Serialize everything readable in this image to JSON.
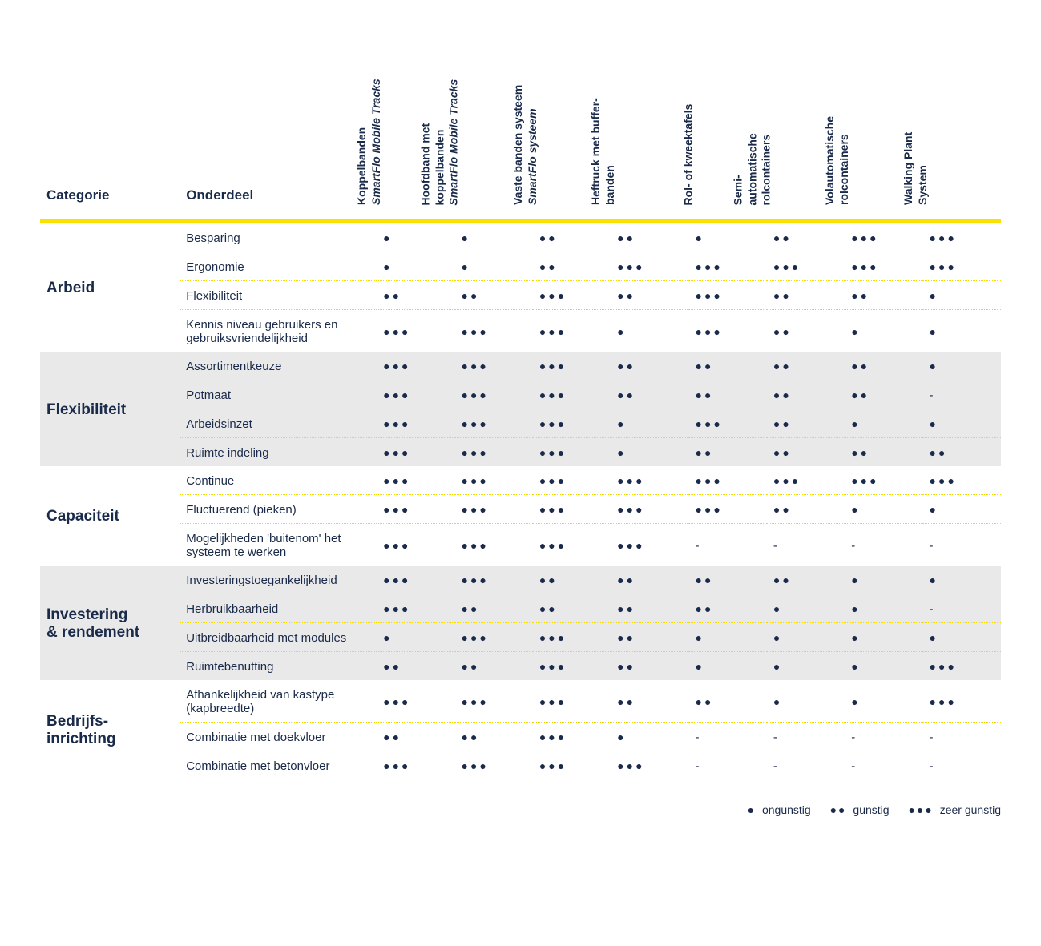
{
  "colors": {
    "text": "#1a2a4a",
    "yellow": "#f9e100",
    "alt_bg": "#e9e9e9",
    "background": "#ffffff"
  },
  "headers": {
    "categorie": "Categorie",
    "onderdeel": "Onderdeel"
  },
  "columns": [
    {
      "line1": "Koppelbanden",
      "line2": "SmartFlo Mobile Tracks"
    },
    {
      "line1": "Hoofdband met",
      "line1b": "koppelbanden",
      "line2": "SmartFlo Mobile Tracks"
    },
    {
      "line1": "Vaste banden systeem",
      "line2": "SmartFlo systeem"
    },
    {
      "line1": "Heftruck met buffer-",
      "line1b": "banden"
    },
    {
      "line1": "Rol- of kweektafels"
    },
    {
      "line1": "Semi-",
      "line1b": "automatische",
      "line1c": "rolcontainers"
    },
    {
      "line1": "Volautomatische",
      "line1b": "rolcontainers"
    },
    {
      "line1": "Walking Plant",
      "line1b": "System"
    }
  ],
  "sections": [
    {
      "category": "Arbeid",
      "alt": false,
      "rows": [
        {
          "label": "Besparing",
          "vals": [
            1,
            1,
            2,
            2,
            1,
            2,
            3,
            3
          ]
        },
        {
          "label": "Ergonomie",
          "vals": [
            1,
            1,
            2,
            3,
            3,
            3,
            3,
            3
          ]
        },
        {
          "label": "Flexibiliteit",
          "vals": [
            2,
            2,
            3,
            2,
            3,
            2,
            2,
            1
          ]
        },
        {
          "label": "Kennis niveau gebruikers en gebruiksvriendelijkheid",
          "vals": [
            3,
            3,
            3,
            1,
            3,
            2,
            1,
            1
          ]
        }
      ]
    },
    {
      "category": "Flexibiliteit",
      "alt": true,
      "rows": [
        {
          "label": "Assortimentkeuze",
          "vals": [
            3,
            3,
            3,
            2,
            2,
            2,
            2,
            1
          ]
        },
        {
          "label": "Potmaat",
          "vals": [
            3,
            3,
            3,
            2,
            2,
            2,
            2,
            "-"
          ]
        },
        {
          "label": "Arbeidsinzet",
          "vals": [
            3,
            3,
            3,
            1,
            3,
            2,
            1,
            1
          ]
        },
        {
          "label": "Ruimte indeling",
          "vals": [
            3,
            3,
            3,
            1,
            2,
            2,
            2,
            2
          ]
        }
      ]
    },
    {
      "category": "Capaciteit",
      "alt": false,
      "rows": [
        {
          "label": "Continue",
          "vals": [
            3,
            3,
            3,
            3,
            3,
            3,
            3,
            3
          ]
        },
        {
          "label": "Fluctuerend (pieken)",
          "vals": [
            3,
            3,
            3,
            3,
            3,
            2,
            1,
            1
          ]
        },
        {
          "label": "Mogelijkheden 'buitenom' het systeem te werken",
          "vals": [
            3,
            3,
            3,
            3,
            "-",
            "-",
            "-",
            "-"
          ]
        }
      ]
    },
    {
      "category": "Investering & rendement",
      "alt": true,
      "rows": [
        {
          "label": "Investeringstoegankelijkheid",
          "vals": [
            3,
            3,
            2,
            2,
            2,
            2,
            1,
            1
          ]
        },
        {
          "label": "Herbruikbaarheid",
          "vals": [
            3,
            2,
            2,
            2,
            2,
            1,
            1,
            "-"
          ]
        },
        {
          "label": "Uitbreidbaarheid met modules",
          "vals": [
            1,
            3,
            3,
            2,
            1,
            1,
            1,
            1
          ]
        },
        {
          "label": "Ruimtebenutting",
          "vals": [
            2,
            2,
            3,
            2,
            1,
            1,
            1,
            3
          ]
        }
      ]
    },
    {
      "category": "Bedrijfs-inrichting",
      "alt": false,
      "rows": [
        {
          "label": "Afhankelijkheid van kastype (kapbreedte)",
          "vals": [
            3,
            3,
            3,
            2,
            2,
            1,
            1,
            3
          ]
        },
        {
          "label": "Combinatie met doekvloer",
          "vals": [
            2,
            2,
            3,
            1,
            "-",
            "-",
            "-",
            "-"
          ]
        },
        {
          "label": "Combinatie met betonvloer",
          "vals": [
            3,
            3,
            3,
            3,
            "-",
            "-",
            "-",
            "-"
          ]
        }
      ]
    }
  ],
  "legend": {
    "1": "ongunstig",
    "2": "gunstig",
    "3": "zeer gunstig"
  }
}
